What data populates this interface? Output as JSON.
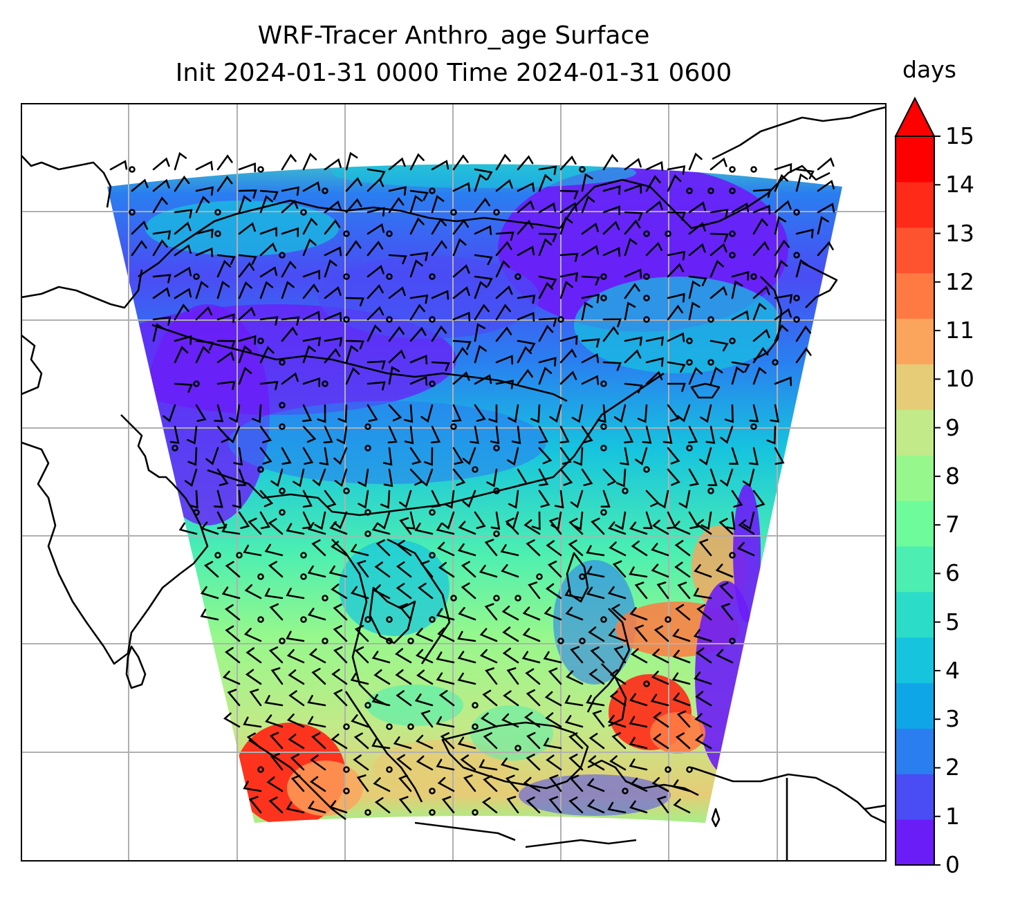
{
  "title": {
    "line1": "WRF-Tracer Anthro_age Surface",
    "line2": "Init 2024-01-31 0000 Time 2024-01-31 0600"
  },
  "colorbar": {
    "units": "days",
    "ticks": [
      "0",
      "1",
      "2",
      "3",
      "4",
      "5",
      "6",
      "7",
      "8",
      "9",
      "10",
      "11",
      "12",
      "13",
      "14",
      "15"
    ],
    "extend": "max",
    "colors": [
      "#6b1df7",
      "#4a4cf4",
      "#2a7ef0",
      "#0fa6e8",
      "#16c4de",
      "#2bdcc8",
      "#4cefb1",
      "#6efb9b",
      "#96f88c",
      "#c2ea88",
      "#e6cc76",
      "#fba45c",
      "#ff7a42",
      "#ff522e",
      "#ff2a18",
      "#ff0000"
    ]
  },
  "map": {
    "gridlines": true,
    "coastlines": true,
    "wind_barbs": true,
    "field_colors": {
      "north_band": "#2a7ef0",
      "inland_low": "#6b1df7",
      "central": "#16c4de",
      "south": "#96f88c",
      "hot_spot": "#ff2a18"
    }
  }
}
